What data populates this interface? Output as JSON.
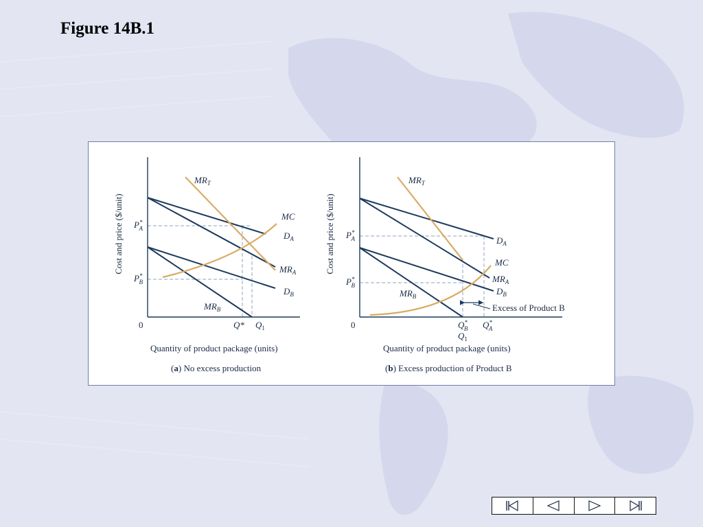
{
  "slide": {
    "title": "Figure 14B.1"
  },
  "colors": {
    "demand_lines": "#1d3a5c",
    "cost_curves": "#d8ab62",
    "guides": "#8ea3c0",
    "axis": "#1d3a5c"
  },
  "panel_a": {
    "ylabel": "Cost and price ($/unit)",
    "xlabel": "Quantity of product package (units)",
    "origin": "0",
    "caption_letter": "a",
    "caption_text": "No excess production",
    "labels": {
      "mrt": {
        "base": "MR",
        "sub": "T"
      },
      "mc": "MC",
      "da": {
        "base": "D",
        "sub": "A"
      },
      "mra": {
        "base": "MR",
        "sub": "A"
      },
      "db": {
        "base": "D",
        "sub": "B"
      },
      "mrb": {
        "base": "MR",
        "sub": "B"
      },
      "pa": {
        "base": "P",
        "sup": "*",
        "sub": "A"
      },
      "pb": {
        "base": "P",
        "sup": "*",
        "sub": "B"
      },
      "qstar": "Q*",
      "q1": {
        "base": "Q",
        "sub": "1"
      }
    }
  },
  "panel_b": {
    "ylabel": "Cost and price ($/unit)",
    "xlabel": "Quantity of product package (units)",
    "origin": "0",
    "caption_letter": "b",
    "caption_text": "Excess production of Product B",
    "annotation": "Excess of Product B",
    "labels": {
      "mrt": {
        "base": "MR",
        "sub": "T"
      },
      "mc": "MC",
      "da": {
        "base": "D",
        "sub": "A"
      },
      "mra": {
        "base": "MR",
        "sub": "A"
      },
      "db": {
        "base": "D",
        "sub": "B"
      },
      "mrb": {
        "base": "MR",
        "sub": "B"
      },
      "pa": {
        "base": "P",
        "sup": "*",
        "sub": "A"
      },
      "pb": {
        "base": "P",
        "sup": "*",
        "sub": "B"
      },
      "qb": {
        "base": "Q",
        "sup": "*",
        "sub": "B"
      },
      "qa": {
        "base": "Q",
        "sup": "*",
        "sub": "A"
      },
      "q1": {
        "base": "Q",
        "sub": "1"
      }
    }
  },
  "nav": [
    {
      "name": "first-slide-icon"
    },
    {
      "name": "previous-slide-icon"
    },
    {
      "name": "next-slide-icon"
    },
    {
      "name": "last-slide-icon"
    }
  ]
}
